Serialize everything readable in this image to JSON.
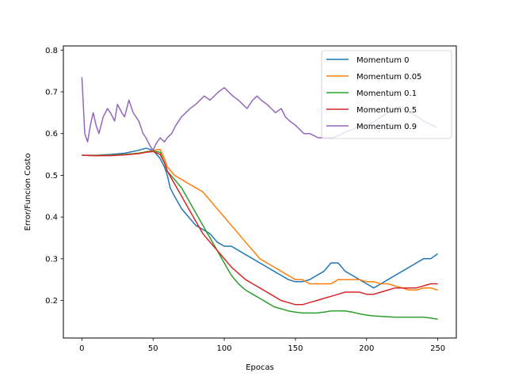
{
  "chart_data": {
    "type": "line",
    "title": "",
    "xlabel": "Epocas",
    "ylabel": "Error/Funcion Costo",
    "xlim": [
      -13,
      263
    ],
    "ylim": [
      0.11,
      0.81
    ],
    "xticks": [
      0,
      50,
      100,
      150,
      200,
      250
    ],
    "yticks": [
      0.2,
      0.3,
      0.4,
      0.5,
      0.6,
      0.7,
      0.8
    ],
    "grid": false,
    "legend_position": "top-right",
    "series": [
      {
        "name": "Momentum 0",
        "color": "#1f77b4",
        "points": [
          [
            0,
            0.548
          ],
          [
            10,
            0.548
          ],
          [
            20,
            0.55
          ],
          [
            30,
            0.553
          ],
          [
            40,
            0.56
          ],
          [
            45,
            0.565
          ],
          [
            50,
            0.56
          ],
          [
            55,
            0.54
          ],
          [
            58,
            0.52
          ],
          [
            60,
            0.5
          ],
          [
            62,
            0.47
          ],
          [
            65,
            0.45
          ],
          [
            70,
            0.42
          ],
          [
            75,
            0.4
          ],
          [
            80,
            0.38
          ],
          [
            85,
            0.37
          ],
          [
            90,
            0.36
          ],
          [
            95,
            0.34
          ],
          [
            100,
            0.33
          ],
          [
            105,
            0.33
          ],
          [
            110,
            0.32
          ],
          [
            115,
            0.31
          ],
          [
            120,
            0.3
          ],
          [
            125,
            0.29
          ],
          [
            130,
            0.28
          ],
          [
            135,
            0.27
          ],
          [
            140,
            0.26
          ],
          [
            145,
            0.25
          ],
          [
            150,
            0.245
          ],
          [
            155,
            0.245
          ],
          [
            160,
            0.25
          ],
          [
            165,
            0.26
          ],
          [
            170,
            0.27
          ],
          [
            175,
            0.29
          ],
          [
            180,
            0.29
          ],
          [
            185,
            0.27
          ],
          [
            190,
            0.26
          ],
          [
            195,
            0.25
          ],
          [
            200,
            0.24
          ],
          [
            205,
            0.23
          ],
          [
            210,
            0.24
          ],
          [
            215,
            0.25
          ],
          [
            220,
            0.26
          ],
          [
            225,
            0.27
          ],
          [
            230,
            0.28
          ],
          [
            235,
            0.29
          ],
          [
            240,
            0.3
          ],
          [
            245,
            0.3
          ],
          [
            250,
            0.312
          ]
        ]
      },
      {
        "name": "Momentum 0.05",
        "color": "#ff7f0e",
        "points": [
          [
            0,
            0.548
          ],
          [
            10,
            0.547
          ],
          [
            20,
            0.548
          ],
          [
            30,
            0.55
          ],
          [
            40,
            0.553
          ],
          [
            45,
            0.556
          ],
          [
            50,
            0.56
          ],
          [
            55,
            0.562
          ],
          [
            58,
            0.54
          ],
          [
            60,
            0.52
          ],
          [
            65,
            0.5
          ],
          [
            70,
            0.49
          ],
          [
            75,
            0.48
          ],
          [
            80,
            0.47
          ],
          [
            85,
            0.46
          ],
          [
            90,
            0.44
          ],
          [
            95,
            0.42
          ],
          [
            100,
            0.4
          ],
          [
            105,
            0.38
          ],
          [
            110,
            0.36
          ],
          [
            115,
            0.34
          ],
          [
            120,
            0.32
          ],
          [
            125,
            0.3
          ],
          [
            130,
            0.29
          ],
          [
            135,
            0.28
          ],
          [
            140,
            0.27
          ],
          [
            145,
            0.26
          ],
          [
            150,
            0.25
          ],
          [
            155,
            0.25
          ],
          [
            160,
            0.24
          ],
          [
            165,
            0.24
          ],
          [
            170,
            0.24
          ],
          [
            175,
            0.24
          ],
          [
            180,
            0.25
          ],
          [
            185,
            0.25
          ],
          [
            190,
            0.25
          ],
          [
            195,
            0.25
          ],
          [
            200,
            0.245
          ],
          [
            205,
            0.245
          ],
          [
            210,
            0.24
          ],
          [
            215,
            0.24
          ],
          [
            220,
            0.235
          ],
          [
            225,
            0.23
          ],
          [
            230,
            0.225
          ],
          [
            235,
            0.225
          ],
          [
            240,
            0.23
          ],
          [
            245,
            0.23
          ],
          [
            250,
            0.225
          ]
        ]
      },
      {
        "name": "Momentum 0.1",
        "color": "#2ca02c",
        "points": [
          [
            0,
            0.548
          ],
          [
            10,
            0.547
          ],
          [
            20,
            0.548
          ],
          [
            30,
            0.55
          ],
          [
            40,
            0.553
          ],
          [
            45,
            0.556
          ],
          [
            50,
            0.558
          ],
          [
            55,
            0.555
          ],
          [
            58,
            0.53
          ],
          [
            60,
            0.51
          ],
          [
            65,
            0.49
          ],
          [
            70,
            0.47
          ],
          [
            75,
            0.44
          ],
          [
            80,
            0.41
          ],
          [
            85,
            0.38
          ],
          [
            90,
            0.35
          ],
          [
            95,
            0.32
          ],
          [
            100,
            0.29
          ],
          [
            105,
            0.26
          ],
          [
            110,
            0.24
          ],
          [
            115,
            0.225
          ],
          [
            120,
            0.215
          ],
          [
            125,
            0.205
          ],
          [
            130,
            0.195
          ],
          [
            135,
            0.185
          ],
          [
            140,
            0.18
          ],
          [
            145,
            0.175
          ],
          [
            150,
            0.172
          ],
          [
            155,
            0.17
          ],
          [
            160,
            0.17
          ],
          [
            165,
            0.17
          ],
          [
            170,
            0.172
          ],
          [
            175,
            0.175
          ],
          [
            180,
            0.175
          ],
          [
            185,
            0.175
          ],
          [
            190,
            0.172
          ],
          [
            195,
            0.168
          ],
          [
            200,
            0.165
          ],
          [
            205,
            0.163
          ],
          [
            210,
            0.162
          ],
          [
            215,
            0.161
          ],
          [
            220,
            0.16
          ],
          [
            225,
            0.16
          ],
          [
            230,
            0.16
          ],
          [
            235,
            0.16
          ],
          [
            240,
            0.16
          ],
          [
            245,
            0.158
          ],
          [
            250,
            0.155
          ]
        ]
      },
      {
        "name": "Momentum 0.5",
        "color": "#d62728",
        "points": [
          [
            0,
            0.548
          ],
          [
            10,
            0.547
          ],
          [
            20,
            0.547
          ],
          [
            30,
            0.549
          ],
          [
            40,
            0.552
          ],
          [
            45,
            0.555
          ],
          [
            50,
            0.557
          ],
          [
            55,
            0.55
          ],
          [
            58,
            0.53
          ],
          [
            60,
            0.51
          ],
          [
            65,
            0.48
          ],
          [
            70,
            0.45
          ],
          [
            75,
            0.42
          ],
          [
            80,
            0.39
          ],
          [
            85,
            0.36
          ],
          [
            90,
            0.34
          ],
          [
            95,
            0.32
          ],
          [
            100,
            0.3
          ],
          [
            105,
            0.28
          ],
          [
            110,
            0.265
          ],
          [
            115,
            0.25
          ],
          [
            120,
            0.24
          ],
          [
            125,
            0.23
          ],
          [
            130,
            0.22
          ],
          [
            135,
            0.21
          ],
          [
            140,
            0.2
          ],
          [
            145,
            0.195
          ],
          [
            150,
            0.19
          ],
          [
            155,
            0.19
          ],
          [
            160,
            0.195
          ],
          [
            165,
            0.2
          ],
          [
            170,
            0.205
          ],
          [
            175,
            0.21
          ],
          [
            180,
            0.215
          ],
          [
            185,
            0.22
          ],
          [
            190,
            0.22
          ],
          [
            195,
            0.22
          ],
          [
            200,
            0.215
          ],
          [
            205,
            0.215
          ],
          [
            210,
            0.22
          ],
          [
            215,
            0.225
          ],
          [
            220,
            0.23
          ],
          [
            225,
            0.23
          ],
          [
            230,
            0.23
          ],
          [
            235,
            0.23
          ],
          [
            240,
            0.235
          ],
          [
            245,
            0.24
          ],
          [
            250,
            0.24
          ]
        ]
      },
      {
        "name": "Momentum 0.9",
        "color": "#9467bd",
        "points": [
          [
            0,
            0.735
          ],
          [
            2,
            0.6
          ],
          [
            4,
            0.58
          ],
          [
            6,
            0.62
          ],
          [
            8,
            0.65
          ],
          [
            10,
            0.62
          ],
          [
            12,
            0.6
          ],
          [
            15,
            0.64
          ],
          [
            18,
            0.66
          ],
          [
            20,
            0.65
          ],
          [
            23,
            0.63
          ],
          [
            25,
            0.67
          ],
          [
            28,
            0.65
          ],
          [
            30,
            0.64
          ],
          [
            33,
            0.68
          ],
          [
            36,
            0.65
          ],
          [
            40,
            0.63
          ],
          [
            43,
            0.6
          ],
          [
            45,
            0.59
          ],
          [
            48,
            0.57
          ],
          [
            50,
            0.56
          ],
          [
            52,
            0.575
          ],
          [
            55,
            0.59
          ],
          [
            58,
            0.58
          ],
          [
            60,
            0.59
          ],
          [
            63,
            0.6
          ],
          [
            66,
            0.62
          ],
          [
            70,
            0.64
          ],
          [
            73,
            0.65
          ],
          [
            76,
            0.66
          ],
          [
            80,
            0.67
          ],
          [
            83,
            0.68
          ],
          [
            86,
            0.69
          ],
          [
            90,
            0.68
          ],
          [
            93,
            0.69
          ],
          [
            96,
            0.7
          ],
          [
            100,
            0.71
          ],
          [
            103,
            0.7
          ],
          [
            106,
            0.69
          ],
          [
            110,
            0.68
          ],
          [
            113,
            0.67
          ],
          [
            116,
            0.66
          ],
          [
            120,
            0.68
          ],
          [
            123,
            0.69
          ],
          [
            126,
            0.68
          ],
          [
            130,
            0.67
          ],
          [
            133,
            0.66
          ],
          [
            136,
            0.65
          ],
          [
            140,
            0.66
          ],
          [
            143,
            0.64
          ],
          [
            146,
            0.63
          ],
          [
            150,
            0.62
          ],
          [
            153,
            0.61
          ],
          [
            156,
            0.6
          ],
          [
            160,
            0.6
          ],
          [
            163,
            0.595
          ],
          [
            166,
            0.59
          ],
          [
            170,
            0.59
          ],
          [
            173,
            0.59
          ],
          [
            176,
            0.59
          ],
          [
            180,
            0.595
          ],
          [
            183,
            0.6
          ],
          [
            186,
            0.605
          ],
          [
            190,
            0.61
          ],
          [
            193,
            0.615
          ],
          [
            196,
            0.62
          ],
          [
            200,
            0.62
          ],
          [
            203,
            0.625
          ],
          [
            206,
            0.63
          ],
          [
            210,
            0.64
          ],
          [
            213,
            0.645
          ],
          [
            216,
            0.65
          ],
          [
            220,
            0.66
          ],
          [
            223,
            0.665
          ],
          [
            226,
            0.66
          ],
          [
            230,
            0.65
          ],
          [
            233,
            0.645
          ],
          [
            236,
            0.64
          ],
          [
            240,
            0.63
          ],
          [
            243,
            0.625
          ],
          [
            246,
            0.62
          ],
          [
            249,
            0.615
          ]
        ]
      }
    ]
  }
}
